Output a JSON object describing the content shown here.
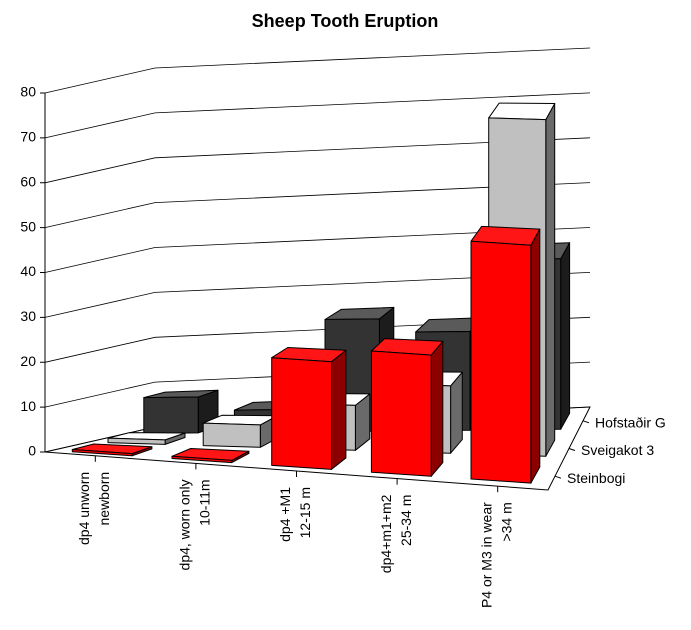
{
  "chart_data": {
    "type": "bar3d",
    "title": "Sheep Tooth Eruption",
    "categories": [
      [
        "dp4 unworn",
        "newborn"
      ],
      [
        "dp4, worn only",
        "10-11m"
      ],
      [
        "dp4 +M1",
        "12-15 m"
      ],
      [
        "dp4+m1+m2",
        "25-34 m"
      ],
      [
        "P4 or M3 in wear",
        ">34 m"
      ]
    ],
    "series": [
      {
        "name": "Steinbogi",
        "color": "#ff0000",
        "values": [
          0.5,
          0.5,
          24,
          27,
          53
        ]
      },
      {
        "name": "Sveigakot 3",
        "color": "#c0c0c0",
        "values": [
          1,
          5,
          10,
          15,
          75
        ]
      },
      {
        "name": "Hofstaðir G",
        "color": "#333333",
        "values": [
          8,
          5,
          25,
          22,
          38
        ]
      }
    ],
    "ylim": [
      0,
      80
    ],
    "yticks": [
      0,
      10,
      20,
      30,
      40,
      50,
      60,
      70,
      80
    ],
    "grid": true
  }
}
